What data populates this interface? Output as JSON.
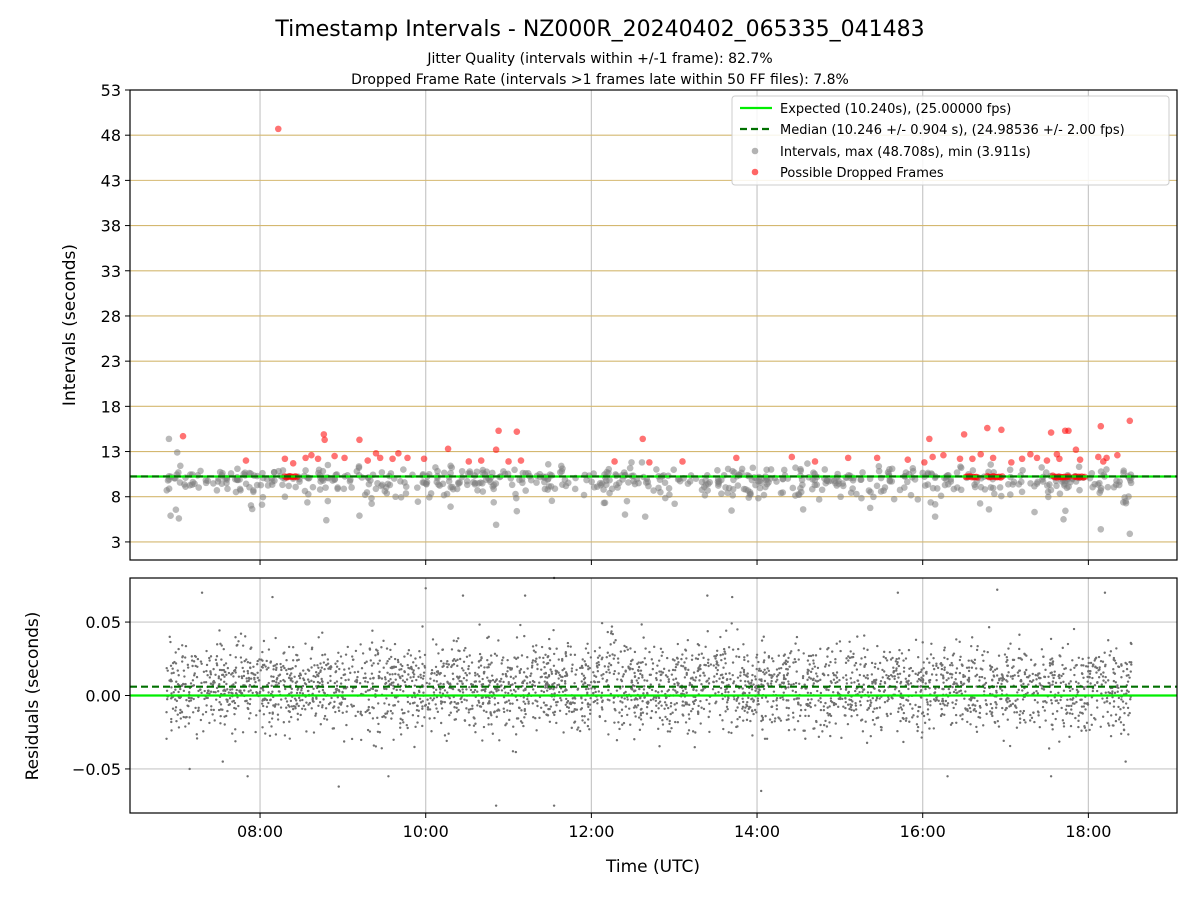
{
  "figure": {
    "title": "Timestamp Intervals - NZ000R_20240402_065335_041483",
    "subtitle1": "Jitter Quality (intervals within +/-1 frame): 82.7%",
    "subtitle2": "Dropped Frame Rate (intervals >1 frames late within 50 FF files): 7.8%"
  },
  "chart_data": [
    {
      "type": "scatter",
      "ylabel": "Intervals (seconds)",
      "xlabel": "",
      "xlim_hours": [
        6.43,
        19.07
      ],
      "ylim": [
        1,
        53
      ],
      "yticks": [
        3,
        8,
        13,
        18,
        23,
        28,
        33,
        38,
        43,
        48,
        53
      ],
      "yticklabels": [
        "3",
        "8",
        "13",
        "18",
        "23",
        "28",
        "33",
        "38",
        "43",
        "48",
        "53"
      ],
      "xticks_hours": [
        8,
        10,
        12,
        14,
        16,
        18
      ],
      "grid": "both",
      "legend": "top-right",
      "colors": {
        "expected": "#00ee00",
        "median": "#007000",
        "intervals": "#808080",
        "dropped": "#ff0000",
        "hgrid": "#d4b870"
      },
      "expected_line": {
        "label": "Expected (10.240s), (25.00000 fps)",
        "value": 10.24
      },
      "median_line": {
        "label": "Median (10.246 +/- 0.904 s), (24.98536 +/- 2.00 fps)",
        "value": 10.246
      },
      "series": [
        {
          "name": "Intervals, max (48.708s), min (3.911s)",
          "role": "intervals",
          "x_hours_range": [
            6.87,
            18.52
          ],
          "max": 48.708,
          "min": 3.911,
          "points": [
            [
              6.9,
              14.4
            ],
            [
              6.92,
              5.9
            ],
            [
              7.02,
              5.6
            ],
            [
              7.0,
              12.9
            ],
            [
              7.6,
              9.9
            ],
            [
              8.3,
              8.0
            ],
            [
              8.8,
              5.4
            ],
            [
              9.2,
              5.9
            ],
            [
              10.3,
              6.9
            ],
            [
              10.85,
              4.9
            ],
            [
              11.1,
              6.4
            ],
            [
              12.65,
              5.8
            ],
            [
              16.15,
              5.8
            ],
            [
              16.8,
              6.6
            ],
            [
              17.35,
              6.3
            ],
            [
              17.7,
              5.5
            ],
            [
              18.15,
              4.4
            ],
            [
              18.5,
              3.9
            ],
            [
              18.45,
              7.5
            ],
            [
              15.2,
              8.3
            ],
            [
              13.9,
              7.9
            ],
            [
              14.75,
              7.7
            ]
          ]
        },
        {
          "name": "Possible Dropped Frames",
          "role": "dropped",
          "points": [
            [
              7.07,
              14.7
            ],
            [
              7.83,
              12.0
            ],
            [
              8.22,
              48.7
            ],
            [
              8.3,
              12.2
            ],
            [
              8.4,
              11.7
            ],
            [
              8.55,
              12.3
            ],
            [
              8.62,
              12.6
            ],
            [
              8.7,
              12.2
            ],
            [
              8.77,
              14.9
            ],
            [
              8.78,
              14.3
            ],
            [
              8.9,
              12.5
            ],
            [
              9.02,
              12.3
            ],
            [
              9.2,
              14.3
            ],
            [
              9.3,
              12.0
            ],
            [
              9.4,
              12.8
            ],
            [
              9.45,
              12.3
            ],
            [
              9.6,
              12.2
            ],
            [
              9.67,
              12.8
            ],
            [
              9.78,
              12.3
            ],
            [
              9.98,
              12.2
            ],
            [
              10.27,
              13.3
            ],
            [
              10.52,
              11.9
            ],
            [
              10.67,
              12.0
            ],
            [
              10.85,
              13.2
            ],
            [
              10.88,
              15.3
            ],
            [
              11.0,
              11.9
            ],
            [
              11.1,
              15.2
            ],
            [
              11.15,
              12.0
            ],
            [
              12.28,
              11.9
            ],
            [
              12.62,
              14.4
            ],
            [
              12.7,
              11.8
            ],
            [
              13.1,
              11.9
            ],
            [
              13.75,
              12.3
            ],
            [
              14.42,
              12.4
            ],
            [
              14.7,
              11.9
            ],
            [
              15.1,
              12.3
            ],
            [
              15.45,
              12.3
            ],
            [
              15.82,
              12.1
            ],
            [
              16.02,
              11.8
            ],
            [
              16.08,
              14.4
            ],
            [
              16.12,
              12.4
            ],
            [
              16.25,
              12.6
            ],
            [
              16.45,
              12.2
            ],
            [
              16.5,
              14.9
            ],
            [
              16.6,
              12.2
            ],
            [
              16.7,
              12.7
            ],
            [
              16.78,
              15.6
            ],
            [
              16.85,
              12.3
            ],
            [
              16.95,
              15.4
            ],
            [
              17.07,
              11.8
            ],
            [
              17.2,
              12.2
            ],
            [
              17.3,
              12.7
            ],
            [
              17.38,
              12.3
            ],
            [
              17.5,
              12.0
            ],
            [
              17.55,
              15.1
            ],
            [
              17.62,
              12.7
            ],
            [
              17.65,
              12.2
            ],
            [
              17.72,
              15.3
            ],
            [
              17.76,
              15.3
            ],
            [
              17.85,
              13.2
            ],
            [
              17.9,
              12.1
            ],
            [
              18.12,
              12.4
            ],
            [
              18.15,
              15.8
            ],
            [
              18.18,
              11.9
            ],
            [
              18.22,
              12.3
            ],
            [
              18.35,
              12.6
            ],
            [
              18.5,
              16.4
            ]
          ],
          "clusters": [
            [
              8.3,
              8.45,
              10.2
            ],
            [
              16.52,
              16.67,
              10.2
            ],
            [
              16.78,
              16.97,
              10.2
            ],
            [
              17.57,
              17.77,
              10.2
            ],
            [
              17.83,
              17.97,
              10.2
            ]
          ]
        }
      ]
    },
    {
      "type": "scatter",
      "ylabel": "Residuals (seconds)",
      "xlabel": "Time (UTC)",
      "xlim_hours": [
        6.43,
        19.07
      ],
      "ylim": [
        -0.08,
        0.08
      ],
      "yticks": [
        -0.05,
        0.0,
        0.05
      ],
      "yticklabels": [
        "−0.05",
        "0.00",
        "0.05"
      ],
      "xticks_hours": [
        8,
        10,
        12,
        14,
        16,
        18
      ],
      "xticklabels": [
        "08:00",
        "10:00",
        "12:00",
        "14:00",
        "16:00",
        "18:00"
      ],
      "grid": "both",
      "expected_line": {
        "value": 0.0,
        "color": "#00ee00"
      },
      "median_line": {
        "value": 0.006,
        "color": "#007000"
      },
      "series": [
        {
          "name": "",
          "color": "#707070",
          "x_hours_range": [
            6.87,
            18.52
          ],
          "count": 3500,
          "center": 0.005,
          "spread": 0.03,
          "outliers": [
            [
              7.15,
              -0.05
            ],
            [
              7.3,
              0.07
            ],
            [
              7.55,
              -0.045
            ],
            [
              7.85,
              -0.055
            ],
            [
              8.15,
              0.067
            ],
            [
              8.95,
              -0.062
            ],
            [
              9.55,
              -0.055
            ],
            [
              10.0,
              0.073
            ],
            [
              10.45,
              0.068
            ],
            [
              10.85,
              -0.075
            ],
            [
              11.55,
              -0.075
            ],
            [
              11.55,
              0.08
            ],
            [
              11.2,
              0.068
            ],
            [
              13.4,
              0.068
            ],
            [
              14.05,
              -0.065
            ],
            [
              13.7,
              0.067
            ],
            [
              15.7,
              0.07
            ],
            [
              16.3,
              -0.055
            ],
            [
              17.55,
              -0.055
            ],
            [
              16.9,
              0.072
            ],
            [
              18.2,
              0.07
            ],
            [
              18.45,
              -0.045
            ]
          ]
        }
      ]
    }
  ]
}
